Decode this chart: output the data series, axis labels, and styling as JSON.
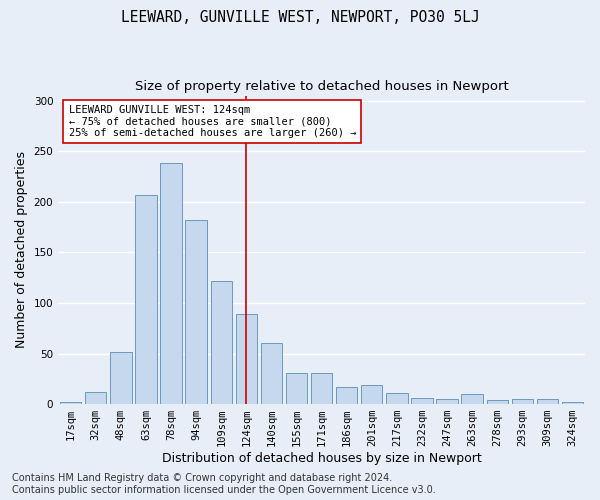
{
  "title": "LEEWARD, GUNVILLE WEST, NEWPORT, PO30 5LJ",
  "subtitle": "Size of property relative to detached houses in Newport",
  "xlabel": "Distribution of detached houses by size in Newport",
  "ylabel": "Number of detached properties",
  "categories": [
    "17sqm",
    "32sqm",
    "48sqm",
    "63sqm",
    "78sqm",
    "94sqm",
    "109sqm",
    "124sqm",
    "140sqm",
    "155sqm",
    "171sqm",
    "186sqm",
    "201sqm",
    "217sqm",
    "232sqm",
    "247sqm",
    "263sqm",
    "278sqm",
    "293sqm",
    "309sqm",
    "324sqm"
  ],
  "values": [
    2,
    12,
    51,
    207,
    238,
    182,
    122,
    89,
    60,
    31,
    31,
    17,
    19,
    11,
    6,
    5,
    10,
    4,
    5,
    5,
    2
  ],
  "bar_color": "#c5d8ed",
  "bar_edge_color": "#5b8db8",
  "vline_x_index": 7,
  "vline_color": "#cc0000",
  "annotation_title": "LEEWARD GUNVILLE WEST: 124sqm",
  "annotation_line1": "← 75% of detached houses are smaller (800)",
  "annotation_line2": "25% of semi-detached houses are larger (260) →",
  "annotation_box_color": "#ffffff",
  "annotation_box_edge_color": "#cc0000",
  "ylim": [
    0,
    305
  ],
  "yticks": [
    0,
    50,
    100,
    150,
    200,
    250,
    300
  ],
  "footer_line1": "Contains HM Land Registry data © Crown copyright and database right 2024.",
  "footer_line2": "Contains public sector information licensed under the Open Government Licence v3.0.",
  "background_color": "#e8eef8",
  "grid_color": "#ffffff",
  "title_fontsize": 10.5,
  "subtitle_fontsize": 9.5,
  "axis_label_fontsize": 9,
  "tick_fontsize": 7.5,
  "footer_fontsize": 7
}
